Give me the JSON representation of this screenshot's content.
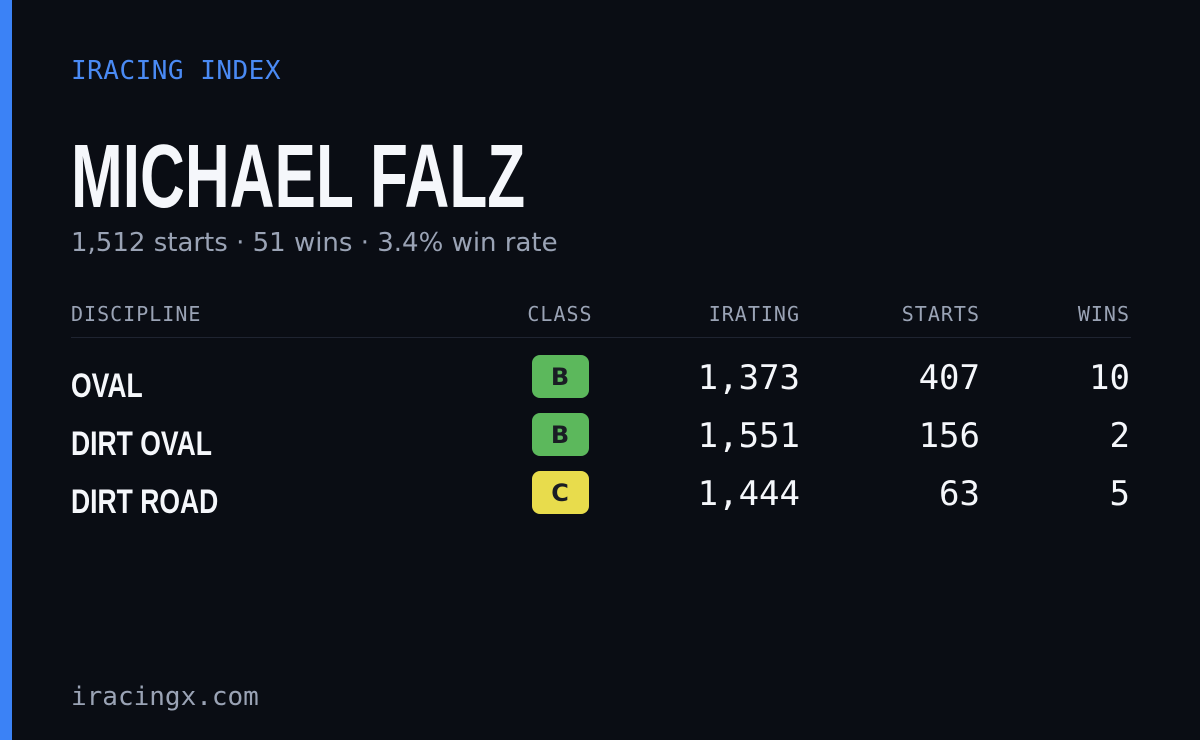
{
  "header": {
    "brand": "IRACING INDEX",
    "name": "MICHAEL FALZ",
    "summary": "1,512 starts · 51 wins · 3.4% win rate"
  },
  "table": {
    "columns": [
      "DISCIPLINE",
      "CLASS",
      "IRATING",
      "STARTS",
      "WINS"
    ],
    "rows": [
      {
        "discipline": "OVAL",
        "class": "B",
        "class_color": "#5cb85c",
        "irating": "1,373",
        "starts": "407",
        "wins": "10"
      },
      {
        "discipline": "DIRT OVAL",
        "class": "B",
        "class_color": "#5cb85c",
        "irating": "1,551",
        "starts": "156",
        "wins": "2"
      },
      {
        "discipline": "DIRT ROAD",
        "class": "C",
        "class_color": "#e8dc4c",
        "irating": "1,444",
        "starts": "63",
        "wins": "5"
      }
    ]
  },
  "footer": {
    "url": "iracingx.com"
  }
}
